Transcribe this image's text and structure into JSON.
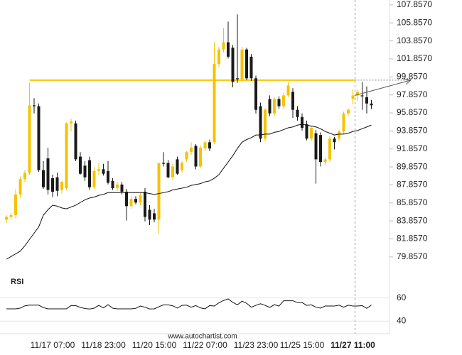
{
  "chart_data": {
    "type": "candlestick",
    "categories": [
      null,
      null,
      null,
      null,
      null,
      null,
      null,
      null,
      null,
      null,
      "11/17 07:00",
      null,
      null,
      null,
      null,
      null,
      null,
      null,
      null,
      null,
      null,
      "11/18 23:00",
      null,
      null,
      null,
      null,
      null,
      null,
      null,
      null,
      null,
      null,
      "11/20 15:00",
      null,
      null,
      null,
      null,
      null,
      null,
      null,
      null,
      null,
      null,
      "11/22 07:00",
      null,
      null,
      null,
      null,
      null,
      null,
      null,
      null,
      null,
      null,
      "11/23 23:00",
      null,
      null,
      null,
      null,
      null,
      null,
      null,
      null,
      null,
      "11/25 15:00",
      null,
      null,
      null,
      null,
      null,
      null,
      null,
      null,
      null,
      null,
      "11/27 11:00",
      null,
      null,
      null,
      null
    ],
    "open": [
      84.0,
      84.3,
      84.5,
      86.8,
      88.5,
      89.2,
      96.7,
      96.6,
      89.5,
      90.8,
      88.6,
      88.7,
      87.3,
      87.5,
      94.7,
      94.7,
      91.0,
      90.0,
      90.6,
      87.6,
      89.4,
      89.6,
      89.4,
      88.3,
      87.5,
      87.9,
      87.1,
      85.5,
      86.3,
      85.9,
      87.1,
      85.1,
      84.7,
      84.0,
      90.3,
      90.3,
      88.7,
      90.7,
      89.5,
      90.7,
      91.5,
      92.2,
      89.9,
      91.9,
      92.6,
      92.6,
      101.3,
      102.9,
      103.7,
      103.1,
      99.7,
      99.6,
      102.9,
      102.1,
      99.7,
      96.6,
      93.0,
      97.4,
      95.8,
      97.4,
      96.6,
      97.8,
      98.2,
      96.2,
      95.4,
      94.6,
      93.0,
      93.6,
      93.4,
      90.4,
      90.7,
      93.0,
      93.0,
      93.8,
      95.8,
      97.4,
      97.8,
      97.8,
      97.6,
      96.9
    ],
    "high": [
      84.5,
      84.8,
      87.4,
      88.8,
      89.5,
      99.2,
      97.5,
      96.9,
      90.5,
      92.0,
      89.0,
      89.2,
      88.3,
      94.8,
      95.2,
      95.0,
      91.5,
      90.5,
      91.0,
      89.8,
      90.3,
      90.2,
      90.5,
      88.6,
      88.2,
      88.2,
      87.4,
      86.6,
      86.6,
      87.0,
      87.5,
      85.6,
      85.2,
      90.3,
      91.5,
      90.6,
      90.2,
      91.0,
      90.5,
      91.6,
      92.6,
      92.4,
      92.2,
      92.8,
      92.9,
      103.7,
      103.2,
      105.3,
      106.0,
      103.4,
      106.8,
      103.2,
      103.1,
      102.4,
      100.0,
      97.0,
      96.4,
      97.8,
      97.6,
      97.7,
      98.1,
      99.3,
      98.6,
      96.6,
      95.8,
      95.0,
      94.4,
      94.0,
      93.7,
      90.9,
      93.3,
      93.2,
      94.0,
      96.0,
      96.4,
      98.5,
      98.4,
      99.3,
      98.8,
      97.3
    ],
    "low": [
      83.6,
      84.0,
      84.2,
      86.5,
      88.2,
      89.0,
      95.8,
      89.3,
      87.4,
      86.8,
      86.5,
      86.6,
      86.9,
      87.3,
      93.8,
      90.5,
      89.0,
      88.3,
      87.3,
      87.4,
      89.0,
      88.9,
      87.9,
      87.3,
      87.2,
      86.8,
      83.9,
      85.2,
      85.7,
      85.6,
      83.8,
      83.4,
      83.7,
      82.4,
      89.9,
      88.6,
      88.4,
      89.0,
      89.2,
      90.4,
      91.2,
      89.6,
      89.7,
      91.6,
      91.6,
      92.4,
      100.9,
      102.6,
      101.9,
      98.7,
      99.2,
      99.3,
      99.5,
      99.4,
      95.8,
      92.6,
      92.7,
      95.5,
      95.5,
      96.3,
      96.3,
      97.6,
      95.3,
      95.0,
      93.9,
      92.8,
      92.7,
      88.0,
      89.9,
      90.1,
      90.4,
      91.8,
      92.7,
      93.5,
      95.5,
      96.8,
      97.2,
      96.2,
      95.8,
      96.3
    ],
    "close": [
      84.3,
      84.5,
      86.8,
      88.5,
      89.2,
      96.7,
      96.6,
      89.5,
      87.6,
      87.3,
      87.1,
      87.2,
      88.2,
      94.7,
      94.9,
      90.7,
      89.1,
      88.7,
      87.6,
      89.4,
      89.6,
      89.1,
      88.1,
      87.5,
      87.9,
      87.1,
      85.5,
      86.3,
      85.9,
      86.7,
      84.3,
      84.0,
      84.0,
      90.3,
      90.2,
      88.7,
      89.9,
      89.1,
      90.3,
      91.5,
      92.0,
      89.9,
      92.0,
      92.6,
      91.9,
      101.3,
      102.9,
      103.7,
      102.1,
      99.3,
      99.6,
      102.9,
      99.7,
      99.7,
      96.2,
      93.0,
      96.2,
      95.8,
      97.4,
      96.6,
      97.8,
      98.9,
      96.2,
      95.4,
      94.2,
      93.0,
      94.2,
      90.7,
      90.4,
      90.7,
      93.0,
      92.6,
      93.8,
      95.8,
      96.2,
      97.8,
      98.2,
      97.7,
      96.9,
      96.7
    ],
    "up_color": "#f5c300",
    "down_color": "#1a1a1a",
    "ylim": [
      78.9,
      108.4
    ],
    "yticks": [
      {
        "value": 79.857,
        "label": "79.8570"
      },
      {
        "value": 81.857,
        "label": "81.8570"
      },
      {
        "value": 83.857,
        "label": "83.8570"
      },
      {
        "value": 85.857,
        "label": "85.8570"
      },
      {
        "value": 87.857,
        "label": "87.8570"
      },
      {
        "value": 89.857,
        "label": "89.8570"
      },
      {
        "value": 91.857,
        "label": "91.8570"
      },
      {
        "value": 93.857,
        "label": "93.8570"
      },
      {
        "value": 95.857,
        "label": "95.8570"
      },
      {
        "value": 97.857,
        "label": "97.8570"
      },
      {
        "value": 99.857,
        "label": "99.8570"
      },
      {
        "value": 101.857,
        "label": "101.8570"
      },
      {
        "value": 103.857,
        "label": "103.8570"
      },
      {
        "value": 105.857,
        "label": "105.8570"
      },
      {
        "value": 107.857,
        "label": "107.8570"
      }
    ],
    "moving_average": {
      "color": "#111111",
      "values": [
        79.6,
        79.9,
        80.2,
        80.5,
        81.1,
        81.8,
        82.5,
        83.2,
        84.5,
        85.1,
        85.6,
        85.5,
        85.3,
        85.2,
        85.4,
        85.6,
        85.9,
        86.2,
        86.4,
        86.5,
        86.7,
        86.8,
        87.0,
        87.0,
        87.0,
        87.0,
        87.0,
        87.0,
        87.0,
        87.0,
        87.0,
        86.9,
        86.8,
        86.9,
        87.0,
        87.1,
        87.3,
        87.4,
        87.5,
        87.6,
        87.8,
        87.9,
        88.0,
        88.2,
        88.3,
        88.6,
        89.0,
        89.7,
        90.4,
        91.1,
        91.9,
        92.6,
        92.9,
        93.1,
        93.4,
        93.4,
        93.5,
        93.5,
        93.7,
        93.8,
        94.0,
        94.2,
        94.3,
        94.5,
        94.6,
        94.5,
        94.4,
        94.3,
        94.1,
        93.8,
        93.6,
        93.4,
        93.5,
        93.5,
        93.6,
        93.8,
        93.9,
        94.1,
        94.3,
        94.5
      ]
    },
    "resistance": {
      "value": 99.5,
      "color": "#f7c600"
    },
    "projection": {
      "values": [
        97.8,
        99.5
      ],
      "color": "#555555"
    },
    "rsi": {
      "label": "RSI",
      "color": "#111111",
      "ylim": [
        34,
        69
      ],
      "yticks": [
        60,
        40
      ],
      "values": [
        50.6,
        50.6,
        50.6,
        51.2,
        53.2,
        53.8,
        53.8,
        53.8,
        51.6,
        50.6,
        50.6,
        50.6,
        50.6,
        50.6,
        53.4,
        53.4,
        51.8,
        50.9,
        50.4,
        51.2,
        53.6,
        51.4,
        54.2,
        51.2,
        50.6,
        50.6,
        50.6,
        50.6,
        51.0,
        53.0,
        52.0,
        50.5,
        50.6,
        52.4,
        54.0,
        54.0,
        53.2,
        51.2,
        53.6,
        53.8,
        52.0,
        53.4,
        51.4,
        50.6,
        53.4,
        53.0,
        55.8,
        57.8,
        59.2,
        56.2,
        54.0,
        57.2,
        55.4,
        52.0,
        53.6,
        55.0,
        53.6,
        51.8,
        54.2,
        53.0,
        57.6,
        57.6,
        57.6,
        56.0,
        56.0,
        53.6,
        54.0,
        52.0,
        51.2,
        53.0,
        53.0,
        53.0,
        53.8,
        52.0,
        53.8,
        53.0,
        53.0,
        53.4,
        51.0,
        53.8
      ]
    },
    "source": "www.autochartist.com"
  }
}
